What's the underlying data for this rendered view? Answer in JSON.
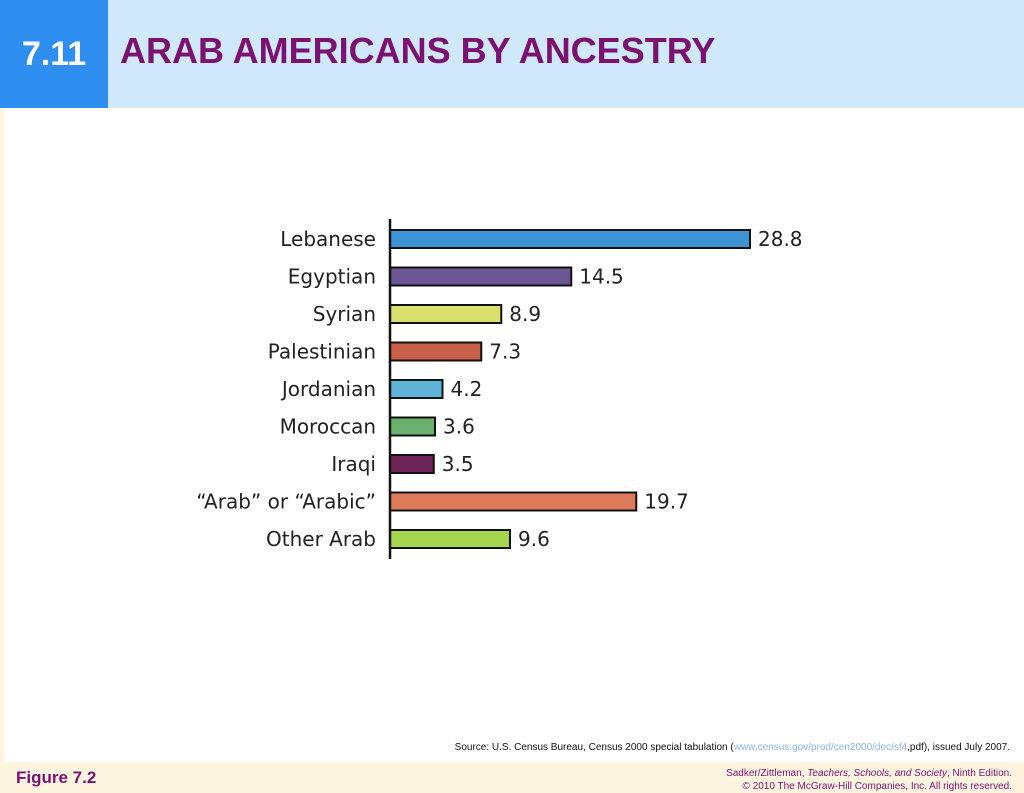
{
  "slide": {
    "number": "7.11",
    "title": "ARAB AMERICANS BY ANCESTRY"
  },
  "source": {
    "prefix": "Source: U.S. Census Bureau, Census 2000 special tabulation (",
    "link": "www.census.gov/prod/cen2000/doc/sf4",
    "suffix": ",pdf), issued July 2007."
  },
  "footer": {
    "figure_label": "Figure 7.2",
    "credit_authors": "Sadker/Zittleman, ",
    "credit_book": "Teachers, Schools, and Society",
    "credit_edition": ", Ninth Edition.",
    "copyright": "© 2010 The McGraw-Hill Companies, Inc. All rights reserved."
  },
  "chart_data": {
    "type": "bar",
    "orientation": "horizontal",
    "categories": [
      "Lebanese",
      "Egyptian",
      "Syrian",
      "Palestinian",
      "Jordanian",
      "Moroccan",
      "Iraqi",
      "“Arab” or “Arabic”",
      "Other Arab"
    ],
    "values": [
      28.8,
      14.5,
      8.9,
      7.3,
      4.2,
      3.6,
      3.5,
      19.7,
      9.6
    ],
    "value_labels": [
      "28.8",
      "14.5",
      "8.9",
      "7.3",
      "4.2",
      "3.6",
      "3.5",
      "19.7",
      "9.6"
    ],
    "colors": [
      "#3d93d3",
      "#6c5593",
      "#dbe06c",
      "#c8604a",
      "#5eb3d8",
      "#6cb070",
      "#6d2459",
      "#de7b5a",
      "#a6d64e"
    ],
    "xlim": [
      0,
      28.8
    ],
    "grid": false,
    "title": "",
    "xlabel": "",
    "ylabel": ""
  }
}
